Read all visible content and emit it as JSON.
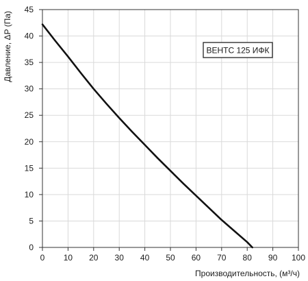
{
  "chart_data": {
    "type": "line",
    "xlabel": "Производительность, (м³/ч)",
    "ylabel": "Давление, ΔP (Па)",
    "xlim": [
      0,
      100
    ],
    "ylim": [
      0,
      45
    ],
    "x_ticks": [
      0,
      10,
      20,
      30,
      40,
      50,
      60,
      70,
      80,
      90,
      100
    ],
    "y_ticks": [
      0,
      5,
      10,
      15,
      20,
      25,
      30,
      35,
      40,
      45
    ],
    "grid": true,
    "legend_position": "top-right",
    "series": [
      {
        "name": "ВЕНТС 125 ИФК",
        "color": "#111111",
        "x": [
          0,
          5,
          10,
          15,
          20,
          25,
          30,
          35,
          40,
          45,
          50,
          55,
          60,
          65,
          70,
          75,
          80,
          82
        ],
        "y": [
          42.2,
          39.1,
          36.1,
          33.0,
          30.0,
          27.2,
          24.5,
          21.9,
          19.4,
          16.9,
          14.5,
          12.1,
          9.8,
          7.5,
          5.2,
          3.1,
          1.0,
          0.0
        ]
      }
    ]
  }
}
